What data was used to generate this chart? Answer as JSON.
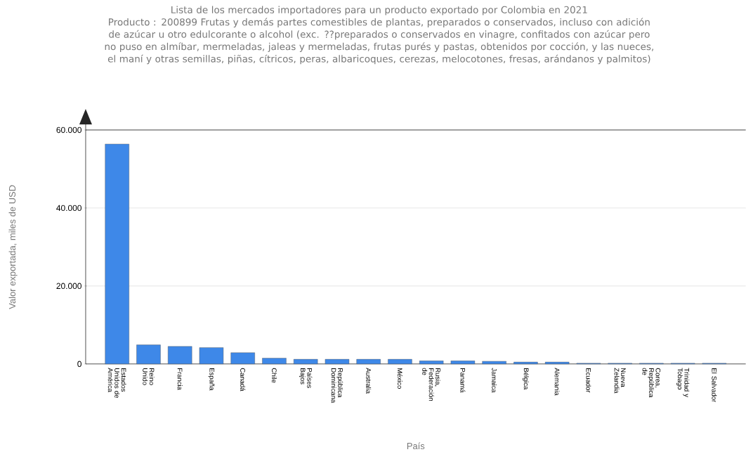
{
  "chart_data": {
    "type": "bar",
    "title": "Lista de los mercados importadores para un producto exportado por Colombia en 2021",
    "subtitle": "Producto : 200899 Frutas y demás partes comestibles de plantas, preparados o conservados, incluso con adición de azúcar u otro edulcorante o alcohol (exc. ??preparados o conservados en vinagre, confitados con azúcar pero no puso en almíbar, mermeladas, jaleas y mermeladas, frutas purés y pastas, obtenidos por cocción, y las nueces, el maní y otras semillas, piñas, cítricos, peras, albaricoques, cerezas, melocotones, fresas, arándanos y palmitos)",
    "xlabel": "País",
    "ylabel": "Valor exportada, miles de USD",
    "categories": [
      "Estados Unidos de América",
      "Reino Unido",
      "Francia",
      "España",
      "Canadá",
      "Chile",
      "Países Bajos",
      "República Dominicana",
      "Australia",
      "México",
      "Rusia, Federación de",
      "Panamá",
      "Jamaica",
      "Bélgica",
      "Alemania",
      "Ecuador",
      "Nueva Zelandia",
      "Corea, República de",
      "Trinidad y Tobago",
      "El Salvador"
    ],
    "values": [
      56400,
      4900,
      4500,
      4200,
      2900,
      1500,
      1200,
      1200,
      1200,
      1200,
      800,
      800,
      700,
      500,
      500,
      200,
      200,
      200,
      200,
      200
    ],
    "color": "#3e88e8",
    "ylim": [
      0,
      60000
    ],
    "yticks": [
      0,
      {
        "value": 20000,
        "label": "20.000"
      },
      {
        "value": 40000,
        "label": "40.000"
      },
      {
        "value": 60000,
        "label": "60.000"
      }
    ],
    "grid": "y"
  }
}
